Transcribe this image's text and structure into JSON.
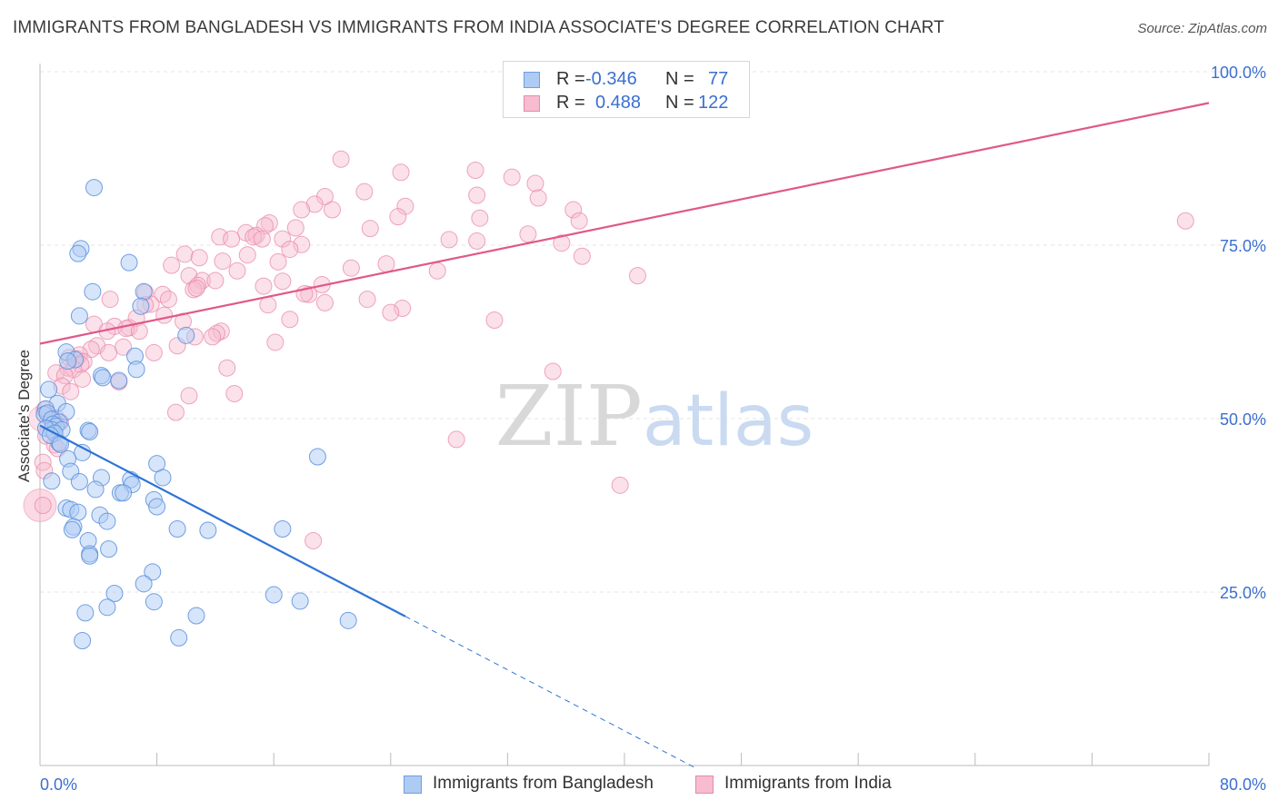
{
  "title": "IMMIGRANTS FROM BANGLADESH VS IMMIGRANTS FROM INDIA ASSOCIATE'S DEGREE CORRELATION CHART",
  "source": "Source: ZipAtlas.com",
  "watermark": "ZIPatlas",
  "legend_top": {
    "rows": [
      {
        "r_label": "R =",
        "r_value": "-0.346",
        "n_label": "N =",
        "n_value": "77"
      },
      {
        "r_label": "R =",
        "r_value": "0.488",
        "n_label": "N =",
        "n_value": "122"
      }
    ]
  },
  "chart_data": {
    "type": "scatter",
    "title": "IMMIGRANTS FROM BANGLADESH VS IMMIGRANTS FROM INDIA ASSOCIATE'S DEGREE CORRELATION CHART",
    "xlabel": "",
    "ylabel": "Associate's Degree",
    "xlim": [
      0,
      80
    ],
    "ylim": [
      0,
      105
    ],
    "x_tick_labels": [
      "0.0%",
      "80.0%"
    ],
    "y_tick_labels": [
      "25.0%",
      "50.0%",
      "75.0%",
      "100.0%"
    ],
    "y_ticks": [
      25,
      50,
      75,
      100
    ],
    "grid": true,
    "legend_position": "top-center",
    "colors": {
      "bangladesh_fill": "#aecbf3",
      "bangladesh_stroke": "#5b8fde",
      "bangladesh_line": "#2f74d6",
      "india_fill": "#f7bcd0",
      "india_stroke": "#e888aa",
      "india_line": "#e0588a",
      "axis_label": "#3b6fd0"
    },
    "series": [
      {
        "name": "Immigrants from Bangladesh",
        "r": -0.346,
        "n": 77,
        "trend": {
          "x0": 0,
          "y0": 49,
          "x1": 25,
          "y1": 21.5,
          "dash_to_x": 45
        },
        "points": [
          [
            3.7,
            83.3
          ],
          [
            2.8,
            74.5
          ],
          [
            2.6,
            73.8
          ],
          [
            6.1,
            72.5
          ],
          [
            3.6,
            68.3
          ],
          [
            7.1,
            68.3
          ],
          [
            6.9,
            66.2
          ],
          [
            2.7,
            64.8
          ],
          [
            10,
            62
          ],
          [
            1.8,
            59.6
          ],
          [
            2.4,
            58.5
          ],
          [
            6.5,
            59
          ],
          [
            1.9,
            58.3
          ],
          [
            6.6,
            57.1
          ],
          [
            4.2,
            56.2
          ],
          [
            4.3,
            55.9
          ],
          [
            5.4,
            55.5
          ],
          [
            0.6,
            54.2
          ],
          [
            1.2,
            52.2
          ],
          [
            0.4,
            51.4
          ],
          [
            1.8,
            51
          ],
          [
            0.3,
            50.6
          ],
          [
            0.5,
            50.8
          ],
          [
            0.8,
            49.9
          ],
          [
            1.3,
            49.5
          ],
          [
            0.9,
            49.2
          ],
          [
            1.1,
            48.9
          ],
          [
            0.8,
            48.4
          ],
          [
            0.4,
            48.6
          ],
          [
            1.5,
            48.4
          ],
          [
            3.3,
            48.3
          ],
          [
            3.4,
            48.1
          ],
          [
            1,
            47.9
          ],
          [
            1.3,
            46.5
          ],
          [
            0.7,
            47.6
          ],
          [
            1.4,
            46.3
          ],
          [
            2.9,
            45.1
          ],
          [
            19,
            44.5
          ],
          [
            1.9,
            44.2
          ],
          [
            8,
            43.5
          ],
          [
            2.1,
            42.4
          ],
          [
            0.8,
            41
          ],
          [
            4.2,
            41.5
          ],
          [
            8.4,
            41.5
          ],
          [
            2.7,
            40.9
          ],
          [
            6.2,
            41.2
          ],
          [
            6.3,
            40.5
          ],
          [
            3.8,
            39.8
          ],
          [
            5.5,
            39.3
          ],
          [
            5.7,
            39.3
          ],
          [
            7.8,
            38.3
          ],
          [
            8,
            37.3
          ],
          [
            1.8,
            37.1
          ],
          [
            2.1,
            36.9
          ],
          [
            2.6,
            36.5
          ],
          [
            4.1,
            36.1
          ],
          [
            4.6,
            35.2
          ],
          [
            2.3,
            34.4
          ],
          [
            2.2,
            34
          ],
          [
            9.4,
            34.1
          ],
          [
            11.5,
            33.9
          ],
          [
            16.6,
            34.1
          ],
          [
            3.3,
            32.4
          ],
          [
            4.7,
            31.2
          ],
          [
            3.4,
            30.5
          ],
          [
            3.4,
            30.2
          ],
          [
            7.7,
            27.9
          ],
          [
            7.1,
            26.2
          ],
          [
            5.1,
            24.8
          ],
          [
            16,
            24.6
          ],
          [
            17.8,
            23.7
          ],
          [
            7.8,
            23.6
          ],
          [
            4.6,
            22.8
          ],
          [
            3.1,
            22
          ],
          [
            10.7,
            21.6
          ],
          [
            21.1,
            20.9
          ],
          [
            9.5,
            18.4
          ],
          [
            2.9,
            18
          ]
        ]
      },
      {
        "name": "Immigrants from India",
        "r": 0.488,
        "n": 122,
        "trend": {
          "x0": 0,
          "y0": 60.8,
          "x1": 80,
          "y1": 95.5
        },
        "points": [
          [
            20.6,
            87.4
          ],
          [
            24.7,
            85.5
          ],
          [
            29.8,
            85.8
          ],
          [
            32.3,
            84.8
          ],
          [
            33.9,
            83.9
          ],
          [
            22.2,
            82.7
          ],
          [
            29.9,
            82.2
          ],
          [
            19.5,
            82
          ],
          [
            34.1,
            81.8
          ],
          [
            18.8,
            80.9
          ],
          [
            25,
            80.6
          ],
          [
            17.9,
            80.1
          ],
          [
            20,
            80.1
          ],
          [
            36.5,
            80.1
          ],
          [
            24.5,
            79.1
          ],
          [
            30.1,
            78.9
          ],
          [
            36.9,
            78.5
          ],
          [
            78.4,
            78.5
          ],
          [
            15.7,
            78.2
          ],
          [
            15.4,
            77.8
          ],
          [
            17.5,
            77.5
          ],
          [
            22.6,
            77.4
          ],
          [
            14.1,
            76.8
          ],
          [
            14.8,
            76.4
          ],
          [
            33.4,
            76.6
          ],
          [
            12.3,
            76.2
          ],
          [
            14.6,
            76.2
          ],
          [
            15.2,
            75.9
          ],
          [
            28,
            75.8
          ],
          [
            16.6,
            75.9
          ],
          [
            13.1,
            75.9
          ],
          [
            29.9,
            75.6
          ],
          [
            35.7,
            75.3
          ],
          [
            17.9,
            75.1
          ],
          [
            17.1,
            74.4
          ],
          [
            9.9,
            73.7
          ],
          [
            14.2,
            73.6
          ],
          [
            37.1,
            73.4
          ],
          [
            10.9,
            73.2
          ],
          [
            12.5,
            72.7
          ],
          [
            16.3,
            72.6
          ],
          [
            23.7,
            72.3
          ],
          [
            9,
            72.1
          ],
          [
            21.3,
            71.7
          ],
          [
            27.2,
            71.3
          ],
          [
            13.5,
            71.3
          ],
          [
            10.2,
            70.6
          ],
          [
            40.9,
            70.6
          ],
          [
            11.1,
            69.9
          ],
          [
            16.6,
            69.8
          ],
          [
            12,
            69.9
          ],
          [
            19.3,
            69.3
          ],
          [
            10.8,
            69.2
          ],
          [
            15.3,
            69.1
          ],
          [
            10.5,
            68.6
          ],
          [
            10.7,
            68.8
          ],
          [
            7.2,
            68.2
          ],
          [
            18.4,
            67.9
          ],
          [
            18.1,
            68
          ],
          [
            8.4,
            67.9
          ],
          [
            4.8,
            67.2
          ],
          [
            8.8,
            67.2
          ],
          [
            22.4,
            67.2
          ],
          [
            19.5,
            66.7
          ],
          [
            7.6,
            66.5
          ],
          [
            15.6,
            66.4
          ],
          [
            7.2,
            66.4
          ],
          [
            24.8,
            65.9
          ],
          [
            24,
            65.3
          ],
          [
            8.5,
            64.9
          ],
          [
            6.6,
            64.5
          ],
          [
            17.1,
            64.3
          ],
          [
            9.8,
            64
          ],
          [
            31.1,
            64.2
          ],
          [
            3.7,
            63.6
          ],
          [
            5.1,
            63.3
          ],
          [
            6.1,
            63.1
          ],
          [
            5.9,
            63
          ],
          [
            4.6,
            62.6
          ],
          [
            6.8,
            62.6
          ],
          [
            12.4,
            62.6
          ],
          [
            12.1,
            62.3
          ],
          [
            11.8,
            61.8
          ],
          [
            10.6,
            61.8
          ],
          [
            16.1,
            61
          ],
          [
            3.9,
            60.5
          ],
          [
            5.7,
            60.3
          ],
          [
            9.4,
            60.5
          ],
          [
            3.5,
            60
          ],
          [
            4.7,
            59.5
          ],
          [
            2.7,
            59.2
          ],
          [
            7.8,
            59.5
          ],
          [
            2,
            58.8
          ],
          [
            2.5,
            58.6
          ],
          [
            3,
            58.2
          ],
          [
            2.8,
            57.8
          ],
          [
            12.8,
            57.3
          ],
          [
            1.9,
            57.3
          ],
          [
            2.3,
            57.1
          ],
          [
            1.1,
            56.6
          ],
          [
            1.7,
            56.2
          ],
          [
            2.9,
            55.7
          ],
          [
            35.1,
            56.8
          ],
          [
            5.4,
            55.3
          ],
          [
            1.5,
            54.7
          ],
          [
            2.1,
            53.9
          ],
          [
            13.3,
            53.6
          ],
          [
            10.2,
            53.3
          ],
          [
            0.3,
            51.3
          ],
          [
            9.3,
            50.9
          ],
          [
            1.1,
            50.1
          ],
          [
            0.8,
            49.7
          ],
          [
            1.4,
            49.5
          ],
          [
            28.5,
            47
          ],
          [
            0.4,
            47.5
          ],
          [
            1,
            46.2
          ],
          [
            1.2,
            45.7
          ],
          [
            0.2,
            43.7
          ],
          [
            0.3,
            42.5
          ],
          [
            39.7,
            40.4
          ],
          [
            0.2,
            37.5
          ],
          [
            18.7,
            32.4
          ]
        ]
      }
    ]
  },
  "bottom_legend": {
    "items": [
      "Immigrants from Bangladesh",
      "Immigrants from India"
    ]
  }
}
